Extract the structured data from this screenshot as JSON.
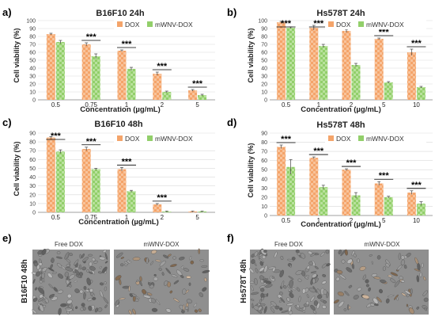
{
  "chart_data": [
    {
      "panel": "a)",
      "type": "bar",
      "title": "B16F10 24h",
      "xlabel": "Concentration (µg/mL)",
      "ylabel": "Cell viability (%)",
      "ylim": [
        0,
        100
      ],
      "yticks": [
        "0",
        "10",
        "20",
        "30",
        "40",
        "50",
        "60",
        "70",
        "80",
        "90",
        "100"
      ],
      "legend_position": "top-right",
      "categories": [
        "0.5",
        "0.75",
        "1",
        "2",
        "5"
      ],
      "series": [
        {
          "name": "DOX",
          "color": "#f4a46a",
          "values": [
            83,
            70,
            62,
            33,
            12
          ],
          "errors": [
            1,
            2,
            1,
            2,
            1
          ]
        },
        {
          "name": "mWNV-DOX",
          "color": "#92cf6a",
          "values": [
            73,
            55,
            39,
            10,
            6
          ],
          "errors": [
            2,
            3,
            2,
            1,
            1
          ]
        }
      ],
      "significance": [
        "",
        "***",
        "***",
        "***",
        "***"
      ],
      "grid": true
    },
    {
      "panel": "b)",
      "type": "bar",
      "title": "Hs578T 24h",
      "xlabel": "Concentration (µg/mL)",
      "ylabel": "Cell viability (%)",
      "ylim": [
        0,
        100
      ],
      "yticks": [
        "0",
        "10",
        "20",
        "30",
        "40",
        "50",
        "60",
        "70",
        "80",
        "90",
        "100"
      ],
      "legend_position": "top-right",
      "categories": [
        "0.5",
        "1",
        "2",
        "5",
        "10"
      ],
      "series": [
        {
          "name": "DOX",
          "color": "#f4a46a",
          "values": [
            98,
            91,
            87,
            77,
            60
          ],
          "errors": [
            1,
            3,
            2,
            1,
            4
          ]
        },
        {
          "name": "mWNV-DOX",
          "color": "#92cf6a",
          "values": [
            91,
            68,
            44,
            22,
            16
          ],
          "errors": [
            1,
            2,
            2,
            1,
            1
          ]
        }
      ],
      "significance": [
        "***",
        "***",
        "***",
        "***",
        "***"
      ],
      "grid": true
    },
    {
      "panel": "c)",
      "type": "bar",
      "title": "B16F10 48h",
      "xlabel": "Concentration (µg/mL)",
      "ylabel": "Cell viability (%)",
      "ylim": [
        0,
        90
      ],
      "yticks": [
        "0",
        "10",
        "20",
        "30",
        "40",
        "50",
        "60",
        "70",
        "80",
        "90"
      ],
      "legend_position": "top-right",
      "categories": [
        "0.5",
        "0.75",
        "1",
        "2",
        "5"
      ],
      "series": [
        {
          "name": "DOX",
          "color": "#f4a46a",
          "values": [
            85,
            72,
            49,
            9,
            1
          ],
          "errors": [
            1,
            2,
            2,
            1,
            0.5
          ]
        },
        {
          "name": "mWNV-DOX",
          "color": "#92cf6a",
          "values": [
            69,
            49,
            24,
            1,
            1
          ],
          "errors": [
            2,
            1,
            1,
            0.5,
            0.5
          ]
        }
      ],
      "significance": [
        "***",
        "***",
        "***",
        "***",
        ""
      ],
      "grid": true
    },
    {
      "panel": "d)",
      "type": "bar",
      "title": "Hs578T 48h",
      "xlabel": "Concentration (µg/mL)",
      "ylabel": "Cell viability (%)",
      "ylim": [
        0,
        90
      ],
      "yticks": [
        "0",
        "10",
        "20",
        "30",
        "40",
        "50",
        "60",
        "70",
        "80",
        "90"
      ],
      "legend_position": "top-right",
      "categories": [
        "0.5",
        "1",
        "2",
        "5",
        "10"
      ],
      "series": [
        {
          "name": "DOX",
          "color": "#f4a46a",
          "values": [
            75,
            63,
            50,
            35,
            25
          ],
          "errors": [
            2,
            1,
            1,
            2,
            2
          ]
        },
        {
          "name": "mWNV-DOX",
          "color": "#92cf6a",
          "values": [
            53,
            31,
            22,
            20,
            13
          ],
          "errors": [
            8,
            2,
            3,
            1,
            2
          ]
        }
      ],
      "significance": [
        "***",
        "***",
        "***",
        "***",
        "***"
      ],
      "grid": true
    }
  ],
  "micrographs": [
    {
      "panel": "e)",
      "row_label": "B16F10 48h",
      "images": [
        {
          "caption": "Free DOX"
        },
        {
          "caption": "mWNV-DOX"
        }
      ]
    },
    {
      "panel": "f)",
      "row_label": "Hs578T 48h",
      "images": [
        {
          "caption": "Free DOX"
        },
        {
          "caption": "mWNV-DOX"
        }
      ]
    }
  ],
  "colors": {
    "dox": "#f4a46a",
    "mwnv": "#92cf6a",
    "grid": "#d9d9d9",
    "axis_text": "#404040",
    "micrograph_bg": "#8f8f8f"
  }
}
